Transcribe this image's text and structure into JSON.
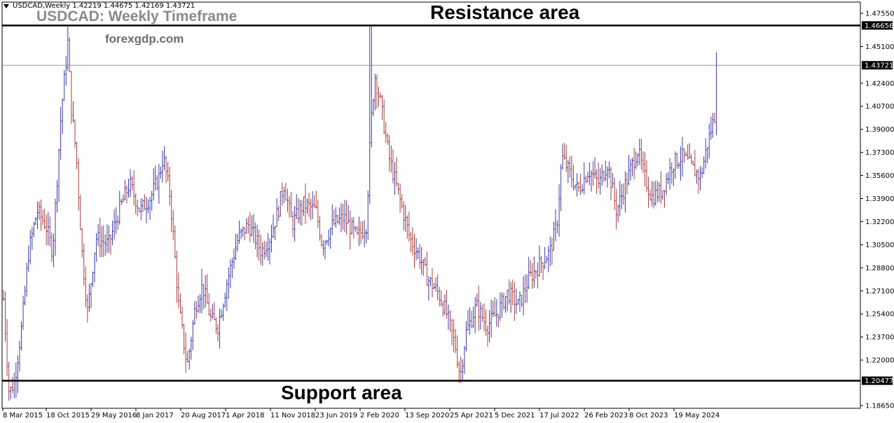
{
  "header": {
    "symbol_info": "USDCAD,Weekly  1.42219 1.44675 1.42169 1.43721",
    "title": "USDCAD: Weekly Timeframe",
    "watermark": "forexgdp.com"
  },
  "annotations": {
    "resistance_label": "Resistance area",
    "support_label": "Support area"
  },
  "colors": {
    "background": "#ffffff",
    "axis": "#000000",
    "grid_line": "#7a8a9a",
    "bar_up": "#3a3aa8",
    "bar_down": "#a83a3a",
    "current_price_box": "#000000"
  },
  "chart_data": {
    "type": "ohlc",
    "timeframe": "Weekly",
    "symbol": "USDCAD",
    "x_labels": [
      "8 Mar 2015",
      "18 Oct 2015",
      "29 May 2016",
      "8 Jan 2017",
      "20 Aug 2017",
      "1 Apr 2018",
      "11 Nov 2018",
      "23 Jun 2019",
      "2 Feb 2020",
      "13 Sep 2020",
      "25 Apr 2021",
      "5 Dec 2021",
      "17 Jul 2022",
      "26 Feb 2023",
      "8 Oct 2023",
      "19 May 2024"
    ],
    "y_ticks": [
      "1.47550",
      "1.45100",
      "1.42400",
      "1.40700",
      "1.39000",
      "1.37300",
      "1.35600",
      "1.33900",
      "1.32200",
      "1.30500",
      "1.28800",
      "1.27100",
      "1.25400",
      "1.23700",
      "1.22000",
      "1.18650"
    ],
    "ylim": [
      1.1865,
      1.4755
    ],
    "resistance_level": "1.46656",
    "support_level": "1.20477",
    "current_price": "1.43721",
    "price_path": [
      [
        0,
        1.265
      ],
      [
        8,
        1.195
      ],
      [
        16,
        1.205
      ],
      [
        26,
        1.245
      ],
      [
        36,
        1.3
      ],
      [
        48,
        1.33
      ],
      [
        60,
        1.32
      ],
      [
        70,
        1.3
      ],
      [
        82,
        1.4
      ],
      [
        92,
        1.455
      ],
      [
        96,
        1.41
      ],
      [
        104,
        1.37
      ],
      [
        112,
        1.3
      ],
      [
        120,
        1.255
      ],
      [
        132,
        1.31
      ],
      [
        150,
        1.305
      ],
      [
        165,
        1.33
      ],
      [
        180,
        1.35
      ],
      [
        195,
        1.33
      ],
      [
        210,
        1.34
      ],
      [
        222,
        1.355
      ],
      [
        228,
        1.37
      ],
      [
        238,
        1.34
      ],
      [
        250,
        1.26
      ],
      [
        262,
        1.215
      ],
      [
        274,
        1.26
      ],
      [
        284,
        1.275
      ],
      [
        296,
        1.25
      ],
      [
        306,
        1.245
      ],
      [
        320,
        1.28
      ],
      [
        335,
        1.31
      ],
      [
        350,
        1.32
      ],
      [
        368,
        1.3
      ],
      [
        380,
        1.31
      ],
      [
        392,
        1.33
      ],
      [
        400,
        1.35
      ],
      [
        412,
        1.32
      ],
      [
        428,
        1.335
      ],
      [
        446,
        1.33
      ],
      [
        455,
        1.305
      ],
      [
        470,
        1.32
      ],
      [
        486,
        1.325
      ],
      [
        505,
        1.31
      ],
      [
        518,
        1.32
      ],
      [
        524,
        1.39
      ],
      [
        530,
        1.43
      ],
      [
        538,
        1.41
      ],
      [
        550,
        1.37
      ],
      [
        565,
        1.34
      ],
      [
        580,
        1.31
      ],
      [
        595,
        1.295
      ],
      [
        605,
        1.28
      ],
      [
        620,
        1.27
      ],
      [
        632,
        1.255
      ],
      [
        645,
        1.23
      ],
      [
        652,
        1.208
      ],
      [
        660,
        1.24
      ],
      [
        675,
        1.26
      ],
      [
        690,
        1.245
      ],
      [
        705,
        1.255
      ],
      [
        720,
        1.27
      ],
      [
        735,
        1.26
      ],
      [
        750,
        1.28
      ],
      [
        765,
        1.29
      ],
      [
        780,
        1.3
      ],
      [
        790,
        1.32
      ],
      [
        797,
        1.37
      ],
      [
        806,
        1.36
      ],
      [
        820,
        1.345
      ],
      [
        835,
        1.36
      ],
      [
        850,
        1.35
      ],
      [
        862,
        1.365
      ],
      [
        875,
        1.33
      ],
      [
        888,
        1.35
      ],
      [
        905,
        1.375
      ],
      [
        915,
        1.355
      ],
      [
        925,
        1.34
      ],
      [
        940,
        1.345
      ],
      [
        955,
        1.365
      ],
      [
        970,
        1.37
      ],
      [
        985,
        1.36
      ],
      [
        995,
        1.355
      ],
      [
        1005,
        1.38
      ],
      [
        1015,
        1.4
      ],
      [
        1023,
        1.437
      ]
    ]
  }
}
